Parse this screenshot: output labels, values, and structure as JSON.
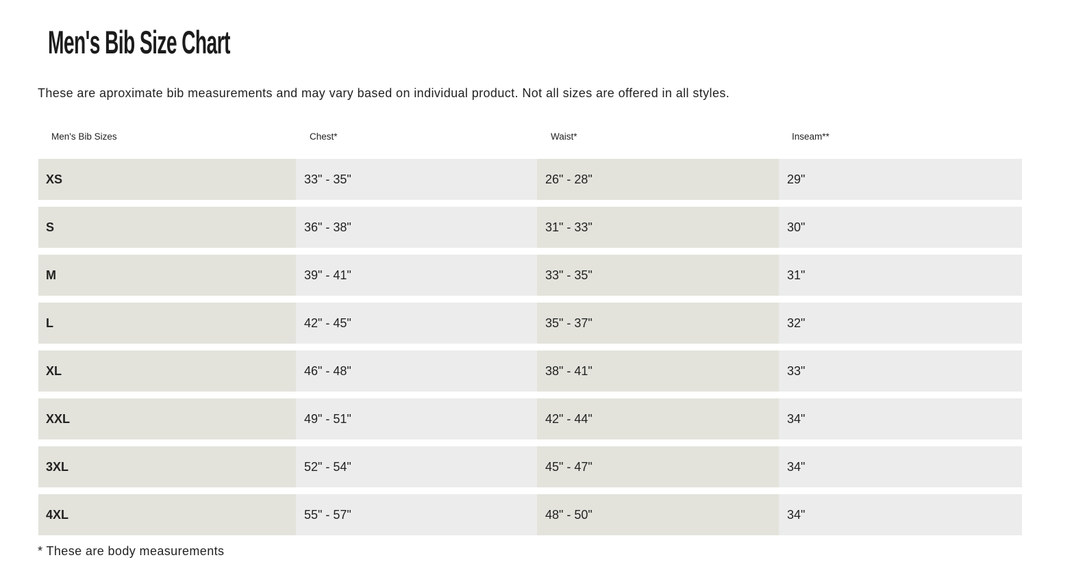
{
  "title": "Men's Bib Size Chart",
  "intro": "These are aproximate bib measurements and may vary based on individual product. Not all sizes are offered in all styles.",
  "table": {
    "headers": [
      "Men's Bib Sizes",
      "Chest*",
      "Waist*",
      "Inseam**"
    ],
    "rows": [
      [
        "XS",
        "33\" - 35\"",
        "26\" - 28\"",
        "29\""
      ],
      [
        "S",
        "36\" - 38\"",
        "31\" - 33\"",
        "30\""
      ],
      [
        "M",
        "39\" - 41\"",
        "33\" - 35\"",
        "31\""
      ],
      [
        "L",
        "42\" - 45\"",
        "35\" - 37\"",
        "32\""
      ],
      [
        "XL",
        "46\" - 48\"",
        "38\" - 41\"",
        "33\""
      ],
      [
        "XXL",
        "49\" - 51\"",
        "42\" - 44\"",
        "34\""
      ],
      [
        "3XL",
        "52\" - 54\"",
        "45\" - 47\"",
        "34\""
      ],
      [
        "4XL",
        "55\" - 57\"",
        "48\" - 50\"",
        "34\""
      ]
    ]
  },
  "footnote": "* These are body measurements",
  "colors": {
    "size_column": "#e3e3dc",
    "light_column": "#ececec"
  }
}
